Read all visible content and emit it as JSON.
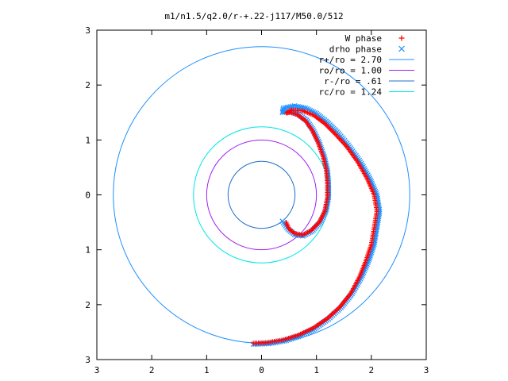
{
  "chart_data": {
    "type": "scatter",
    "title": "m1/n1.5/q2.0/r-+.22-j117/M50.0/512",
    "xlabel": "",
    "ylabel": "",
    "xlim": [
      -3,
      3
    ],
    "ylim": [
      -3,
      3
    ],
    "x_tick_labels": [
      "3",
      "2",
      "1",
      "0",
      "1",
      "2",
      "3"
    ],
    "y_tick_labels": [
      "3",
      "2",
      "1",
      "0",
      "1",
      "2",
      "3"
    ],
    "grid": false,
    "legend_position": "top-right",
    "series": [
      {
        "name": "W phase",
        "kind": "points",
        "marker": "plus",
        "color": "#ff0000",
        "spiral": [
          [
            0.45,
            -0.5
          ],
          [
            0.5,
            -0.62
          ],
          [
            0.6,
            -0.7
          ],
          [
            0.75,
            -0.73
          ],
          [
            0.9,
            -0.65
          ],
          [
            1.05,
            -0.5
          ],
          [
            1.15,
            -0.3
          ],
          [
            1.2,
            -0.05
          ],
          [
            1.2,
            0.2
          ],
          [
            1.18,
            0.45
          ],
          [
            1.12,
            0.7
          ],
          [
            1.03,
            0.95
          ],
          [
            0.92,
            1.18
          ],
          [
            0.8,
            1.35
          ],
          [
            0.65,
            1.46
          ],
          [
            0.52,
            1.5
          ],
          [
            0.45,
            1.49
          ],
          [
            0.55,
            1.55
          ],
          [
            0.75,
            1.53
          ],
          [
            0.95,
            1.45
          ],
          [
            1.15,
            1.3
          ],
          [
            1.35,
            1.1
          ],
          [
            1.55,
            0.88
          ],
          [
            1.75,
            0.6
          ],
          [
            1.92,
            0.3
          ],
          [
            2.05,
            0.0
          ],
          [
            2.1,
            -0.3
          ],
          [
            2.05,
            -0.6
          ],
          [
            2.0,
            -0.9
          ],
          [
            1.9,
            -1.2
          ],
          [
            1.78,
            -1.5
          ],
          [
            1.62,
            -1.8
          ],
          [
            1.42,
            -2.05
          ],
          [
            1.2,
            -2.25
          ],
          [
            0.95,
            -2.42
          ],
          [
            0.68,
            -2.55
          ],
          [
            0.4,
            -2.64
          ],
          [
            0.1,
            -2.69
          ],
          [
            -0.15,
            -2.7
          ]
        ]
      },
      {
        "name": "drho phase",
        "kind": "points",
        "marker": "cross",
        "color": "#1e90ff",
        "spiral": [
          [
            0.38,
            -0.48
          ],
          [
            0.48,
            -0.62
          ],
          [
            0.6,
            -0.72
          ],
          [
            0.75,
            -0.75
          ],
          [
            0.92,
            -0.66
          ],
          [
            1.07,
            -0.5
          ],
          [
            1.17,
            -0.3
          ],
          [
            1.22,
            -0.05
          ],
          [
            1.22,
            0.2
          ],
          [
            1.2,
            0.45
          ],
          [
            1.14,
            0.7
          ],
          [
            1.05,
            0.95
          ],
          [
            0.94,
            1.18
          ],
          [
            0.82,
            1.36
          ],
          [
            0.67,
            1.47
          ],
          [
            0.54,
            1.52
          ],
          [
            0.38,
            1.5
          ],
          [
            0.4,
            1.58
          ],
          [
            0.6,
            1.62
          ],
          [
            0.8,
            1.58
          ],
          [
            1.0,
            1.48
          ],
          [
            1.2,
            1.32
          ],
          [
            1.4,
            1.12
          ],
          [
            1.6,
            0.88
          ],
          [
            1.8,
            0.6
          ],
          [
            1.97,
            0.3
          ],
          [
            2.1,
            0.0
          ],
          [
            2.15,
            -0.3
          ],
          [
            2.1,
            -0.6
          ],
          [
            2.05,
            -0.9
          ],
          [
            1.95,
            -1.2
          ],
          [
            1.82,
            -1.5
          ],
          [
            1.65,
            -1.8
          ],
          [
            1.45,
            -2.05
          ],
          [
            1.22,
            -2.26
          ],
          [
            0.97,
            -2.44
          ],
          [
            0.7,
            -2.57
          ],
          [
            0.42,
            -2.66
          ],
          [
            0.12,
            -2.71
          ],
          [
            -0.15,
            -2.72
          ]
        ]
      },
      {
        "name": "r+/ro = 2.70",
        "kind": "circle",
        "radius": 2.7,
        "color": "#1e90ff"
      },
      {
        "name": "ro/ro = 1.00",
        "kind": "circle",
        "radius": 1.0,
        "color": "#a020f0"
      },
      {
        "name": "r-/ro = .61",
        "kind": "circle",
        "radius": 0.61,
        "color": "#1e6fcc"
      },
      {
        "name": "rc/ro = 1.24",
        "kind": "circle",
        "radius": 1.24,
        "color": "#00e5e5"
      }
    ]
  }
}
